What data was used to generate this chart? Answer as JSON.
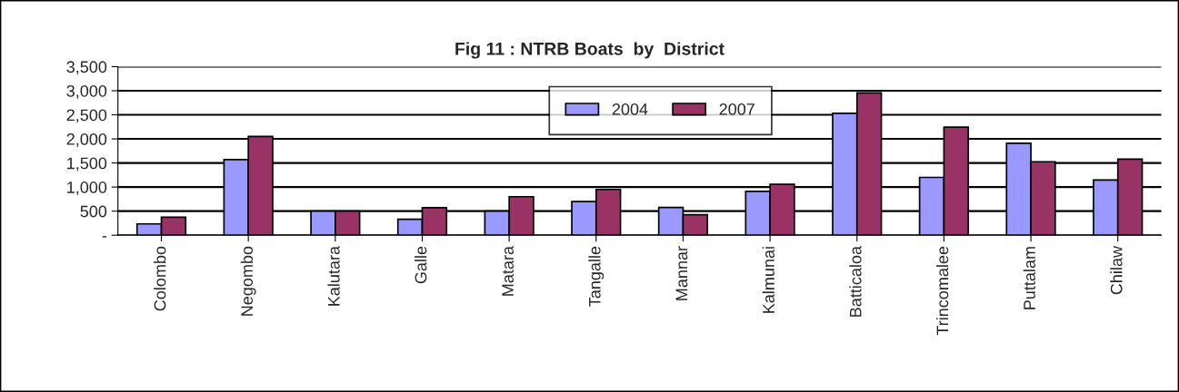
{
  "chart_data": {
    "type": "bar",
    "title": "Fig 11 : NTRB Boats  by  District",
    "categories": [
      "Colombo",
      "Negombo",
      "Kalutara",
      "Galle",
      "Matara",
      "Tangalle",
      "Mannar",
      "Kalmunai",
      "Batticaloa",
      "Trincomalee",
      "Puttalam",
      "Chilaw"
    ],
    "series": [
      {
        "name": "2004",
        "color": "#9999ff",
        "values": [
          235,
          1570,
          500,
          330,
          500,
          700,
          575,
          910,
          2530,
          1200,
          1910,
          1145
        ]
      },
      {
        "name": "2007",
        "color": "#993366",
        "values": [
          375,
          2050,
          500,
          570,
          800,
          950,
          425,
          1055,
          2955,
          2245,
          1525,
          1580
        ]
      }
    ],
    "ylim": [
      0,
      3500
    ],
    "yticks": [
      {
        "value": 0,
        "label": "-"
      },
      {
        "value": 500,
        "label": "500"
      },
      {
        "value": 1000,
        "label": "1,000"
      },
      {
        "value": 1500,
        "label": "1,500"
      },
      {
        "value": 2000,
        "label": "2,000"
      },
      {
        "value": 2500,
        "label": "2,500"
      },
      {
        "value": 3000,
        "label": "3,000"
      },
      {
        "value": 3500,
        "label": "3,500"
      }
    ],
    "grid": "y",
    "legend": "top"
  }
}
